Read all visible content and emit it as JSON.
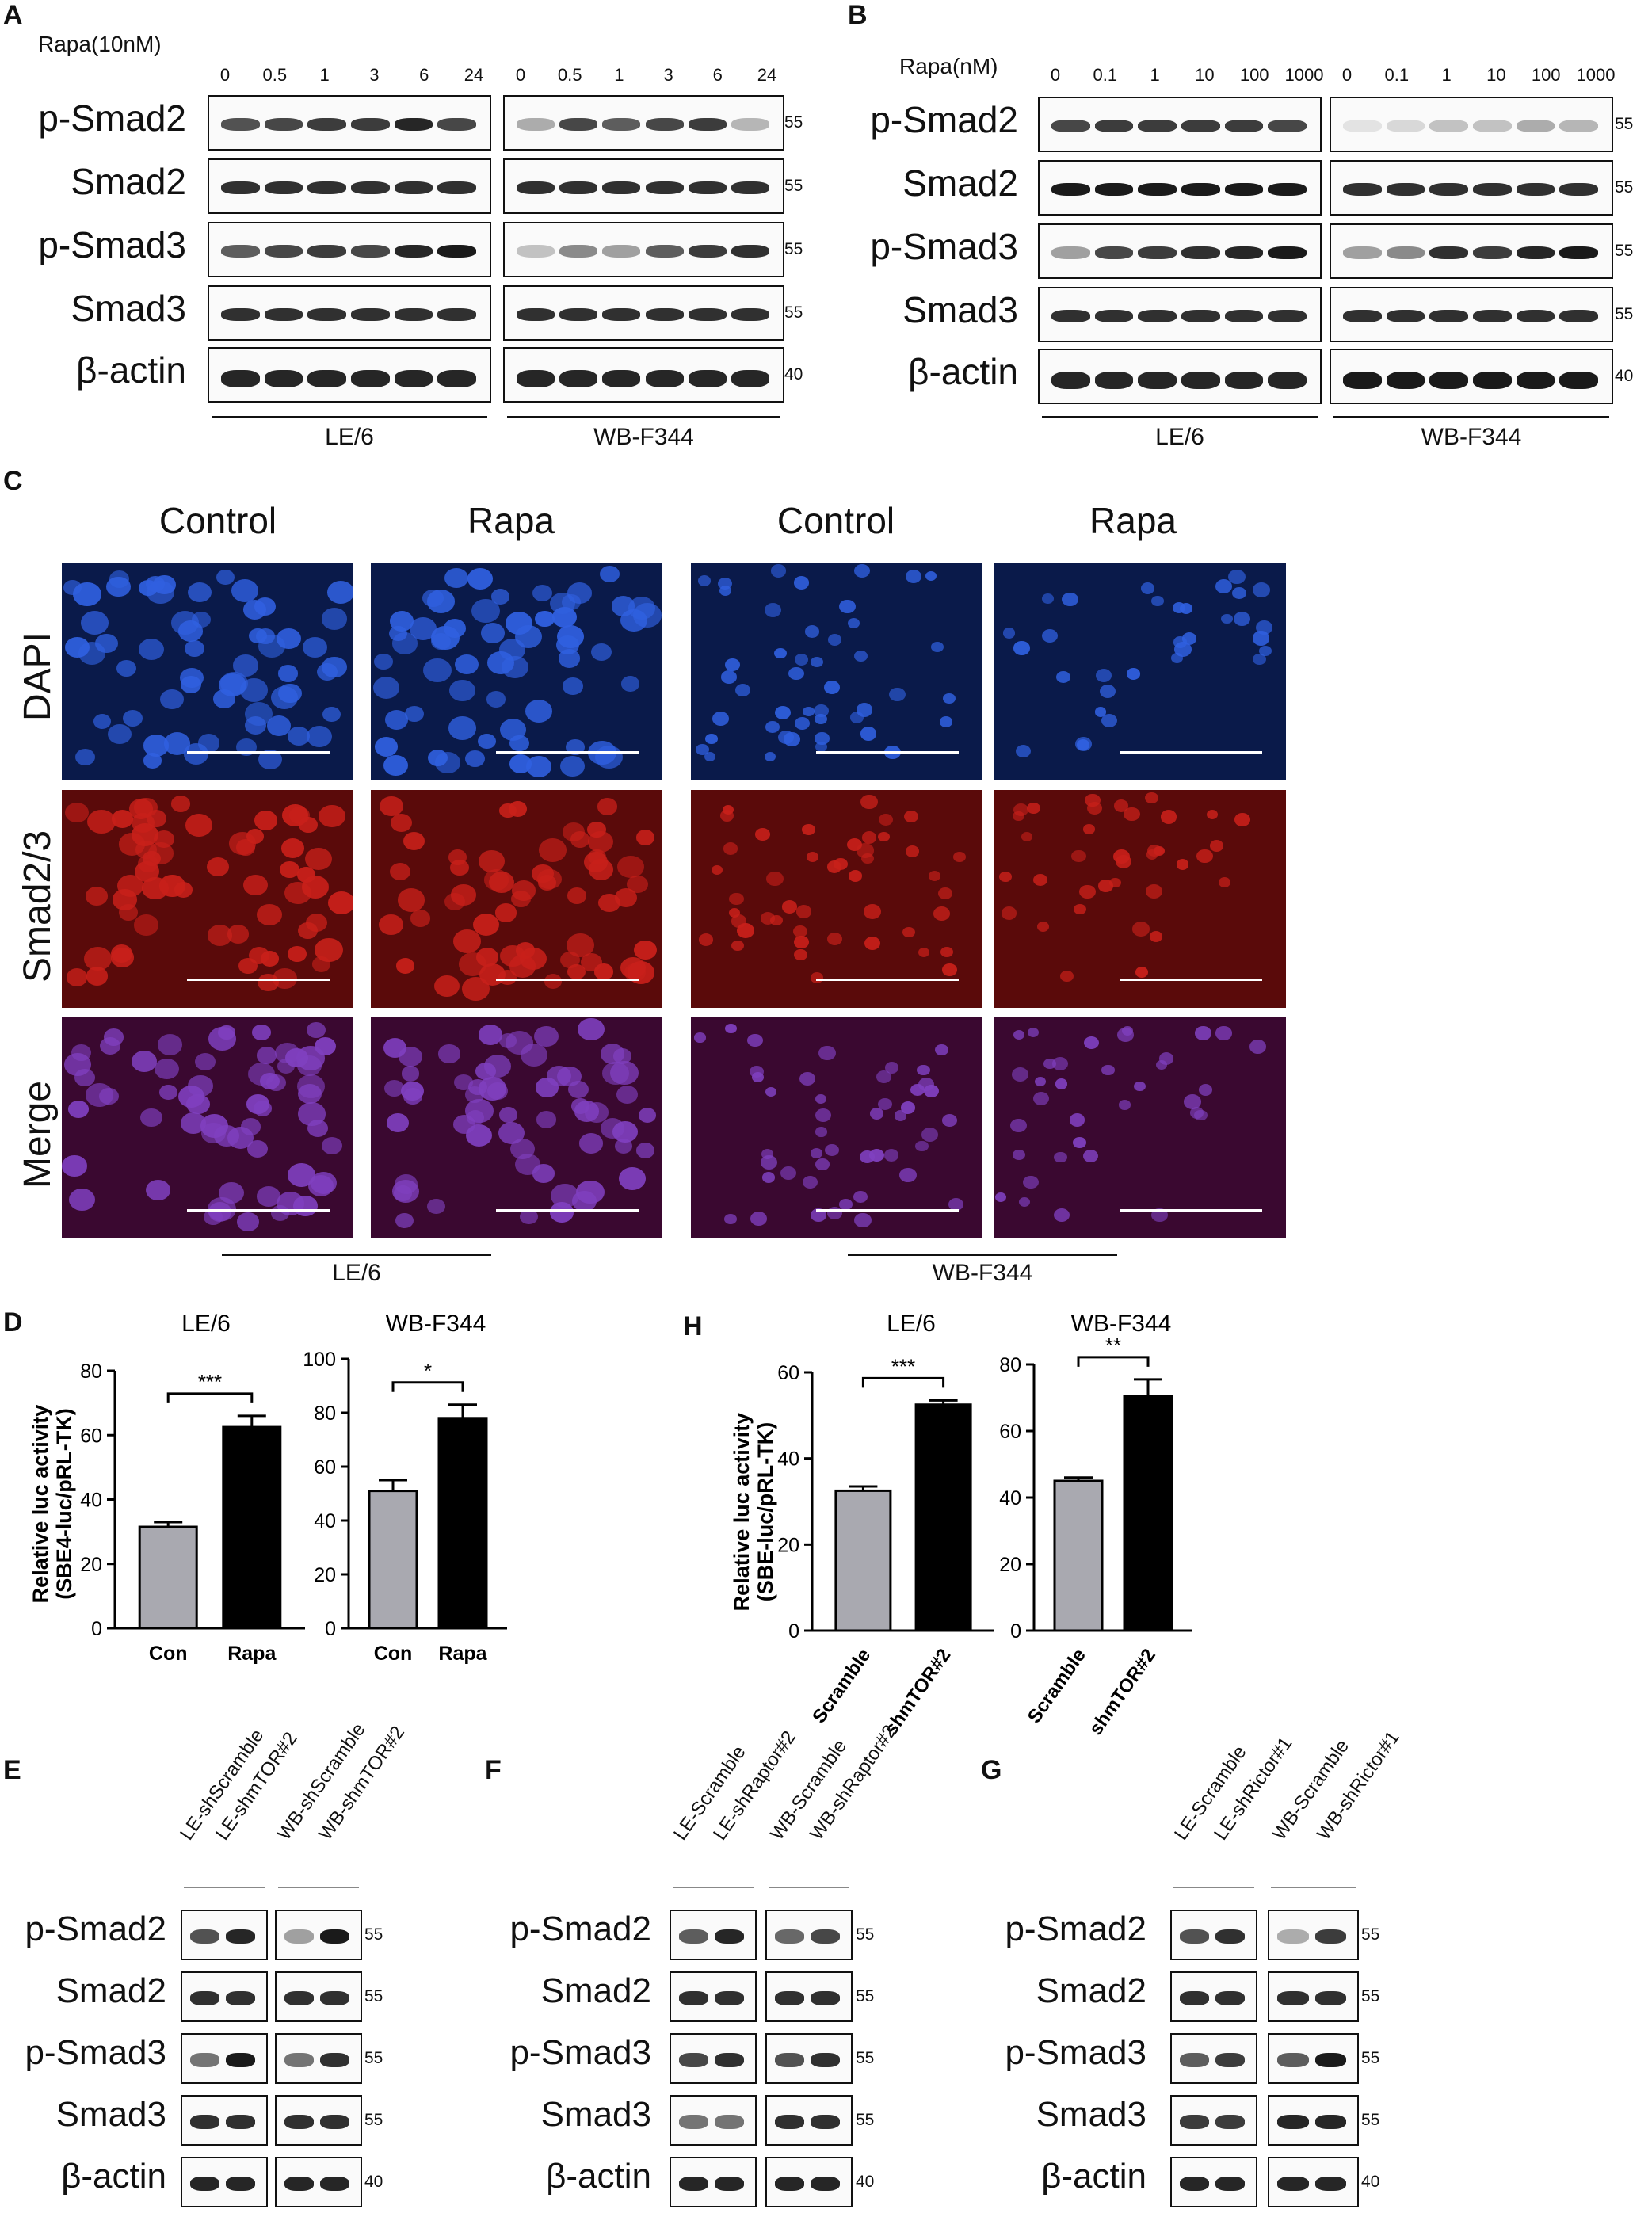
{
  "panels": {
    "A": {
      "letter": "A",
      "condition": "Rapa(10nM)",
      "lanes": [
        "0",
        "0.5",
        "1",
        "3",
        "6",
        "24"
      ],
      "rows": [
        "p-Smad2",
        "Smad2",
        "p-Smad3",
        "Smad3",
        "β-actin"
      ],
      "mw": [
        "55",
        "55",
        "55",
        "55",
        "40"
      ],
      "groups": [
        "LE/6",
        "WB-F344"
      ]
    },
    "B": {
      "letter": "B",
      "condition": "Rapa(nM)",
      "lanes": [
        "0",
        "0.1",
        "1",
        "10",
        "100",
        "1000"
      ],
      "rows": [
        "p-Smad2",
        "Smad2",
        "p-Smad3",
        "Smad3",
        "β-actin"
      ],
      "mw": [
        "55",
        "55",
        "55",
        "55",
        "40"
      ],
      "groups": [
        "LE/6",
        "WB-F344"
      ]
    },
    "C": {
      "letter": "C",
      "columns": [
        "Control",
        "Rapa",
        "Control",
        "Rapa"
      ],
      "rows": [
        "DAPI",
        "Smad2/3",
        "Merge"
      ],
      "groups": [
        "LE/6",
        "WB-F344"
      ]
    },
    "D": {
      "letter": "D"
    },
    "H": {
      "letter": "H"
    },
    "E": {
      "letter": "E",
      "lanes": [
        "LE-shScramble",
        "LE-shmTOR#2",
        "WB-shScramble",
        "WB-shmTOR#2"
      ]
    },
    "F": {
      "letter": "F",
      "lanes": [
        "LE-Scramble",
        "LE-shRaptor#2",
        "WB-Scramble",
        "WB-shRaptor#2"
      ]
    },
    "G": {
      "letter": "G",
      "lanes": [
        "LE-Scramble",
        "LE-shRictor#1",
        "WB-Scramble",
        "WB-shRictor#1"
      ]
    },
    "blot_rows": [
      "p-Smad2",
      "Smad2",
      "p-Smad3",
      "Smad3",
      "β-actin"
    ],
    "blot_mw": [
      "55",
      "55",
      "55",
      "55",
      "40"
    ]
  },
  "chart_data": [
    {
      "type": "bar",
      "panel": "D",
      "title": "LE/6",
      "categories": [
        "Con",
        "Rapa"
      ],
      "values": [
        31.5,
        62.5
      ],
      "errors": [
        1.5,
        3.5
      ],
      "ylabel": "Relative luc activity\n(SBE4-luc/pRL-TK)",
      "ylim": [
        0,
        80
      ],
      "yticks": [
        0,
        20,
        40,
        60,
        80
      ],
      "significance": "***",
      "colors": [
        "#a9a9b0",
        "#000000"
      ]
    },
    {
      "type": "bar",
      "panel": "D",
      "title": "WB-F344",
      "categories": [
        "Con",
        "Rapa"
      ],
      "values": [
        51,
        78
      ],
      "errors": [
        4,
        5
      ],
      "ylim": [
        0,
        100
      ],
      "yticks": [
        0,
        20,
        40,
        60,
        80,
        100
      ],
      "significance": "*",
      "colors": [
        "#a9a9b0",
        "#000000"
      ]
    },
    {
      "type": "bar",
      "panel": "H",
      "title": "LE/6",
      "categories": [
        "Scramble",
        "shmTOR#2"
      ],
      "values": [
        32.5,
        52.5
      ],
      "errors": [
        1,
        1
      ],
      "ylabel": "Relative luc activity\n(SBE-luc/pRL-TK)",
      "ylim": [
        0,
        60
      ],
      "yticks": [
        0,
        20,
        40,
        60
      ],
      "significance": "***",
      "colors": [
        "#a9a9b0",
        "#000000"
      ]
    },
    {
      "type": "bar",
      "panel": "H",
      "title": "WB-F344",
      "categories": [
        "Scramble",
        "shmTOR#2"
      ],
      "values": [
        45,
        70.5
      ],
      "errors": [
        1,
        5
      ],
      "ylim": [
        0,
        80
      ],
      "yticks": [
        0,
        20,
        40,
        60,
        80
      ],
      "significance": "**",
      "colors": [
        "#a9a9b0",
        "#000000"
      ]
    }
  ],
  "ylabels": {
    "D": [
      "Relative luc activity",
      "(SBE4-luc/pRL-TK)"
    ],
    "H": [
      "Relative luc activity",
      "(SBE-luc/pRL-TK)"
    ]
  },
  "colors": {
    "dapi": "#0a1a4a",
    "dapi_nuc": "#3060e0",
    "red_bg": "#5a0a0a",
    "red_nuc": "#c8201a",
    "merge_nuc": "#8040c0"
  }
}
